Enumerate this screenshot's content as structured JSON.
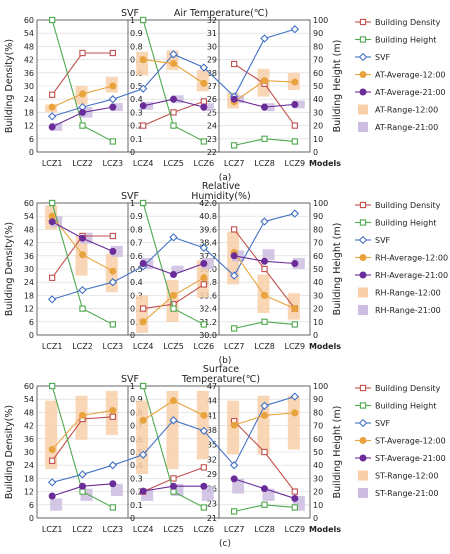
{
  "colors": {
    "density": "#C0504D",
    "height": "#4EA84E",
    "svf": "#4472C4",
    "avg12": "#E8A33C",
    "avg21": "#6A2C99",
    "range12": "#F8CFA8",
    "range21": "#CDBDE0",
    "grid": "#D9D9D9",
    "axis": "#000000"
  },
  "chart_data": [
    {
      "id": "a",
      "type": "line",
      "panel_label": "(a)",
      "title_lines": [
        "Air Temperature(℃)"
      ],
      "svf_title": "SVF",
      "ylabel_left": "Building Density(%)",
      "ylabel_right": "Building Height (m)",
      "x_last_label": "Models",
      "categories": [
        "LCZ1",
        "LCZ2",
        "LCZ3",
        "LCZ4",
        "LCZ5",
        "LCZ6",
        "LCZ7",
        "LCZ8",
        "LCZ9"
      ],
      "density_ticks": [
        "0",
        "6",
        "12",
        "18",
        "24",
        "30",
        "36",
        "42",
        "48",
        "54",
        "60"
      ],
      "svf_ticks": [
        "0",
        "0.1",
        "0.2",
        "0.3",
        "0.4",
        "0.5",
        "0.6",
        "0.7",
        "0.8",
        "0.9",
        "1"
      ],
      "var_ticks": [
        "22",
        "23",
        "24",
        "25",
        "26",
        "27",
        "28",
        "29",
        "30",
        "31",
        "32"
      ],
      "height_ticks": [
        "0",
        "10",
        "20",
        "30",
        "40",
        "50",
        "60",
        "70",
        "80",
        "90",
        "100"
      ],
      "ylim_density": [
        0,
        60
      ],
      "ylim_svf": [
        0,
        1
      ],
      "ylim_var": [
        22,
        32
      ],
      "ylim_height": [
        0,
        100
      ],
      "series": [
        {
          "name": "Building Density",
          "key": "density",
          "axis": "density",
          "marker": "square",
          "values": [
            26,
            45,
            45,
            12,
            18,
            23,
            40,
            31,
            12
          ]
        },
        {
          "name": "Building Height",
          "key": "height",
          "axis": "height",
          "marker": "square",
          "values": [
            100,
            20,
            8,
            100,
            20,
            8,
            5,
            10,
            8
          ]
        },
        {
          "name": "SVF",
          "key": "svf",
          "axis": "svf",
          "marker": "diamond",
          "values": [
            0.27,
            0.34,
            0.4,
            0.48,
            0.74,
            0.64,
            0.42,
            0.86,
            0.93
          ]
        },
        {
          "name": "AT-Average-12:00",
          "key": "avg12",
          "axis": "var",
          "marker": "circle",
          "values": [
            25.4,
            26.4,
            27.0,
            29.0,
            28.7,
            27.2,
            25.8,
            27.4,
            27.3
          ]
        },
        {
          "name": "AT-Average-21:00",
          "key": "avg21",
          "axis": "var",
          "marker": "circle",
          "values": [
            23.9,
            25.0,
            25.4,
            25.5,
            26.0,
            25.4,
            26.0,
            25.4,
            25.6
          ]
        }
      ],
      "ranges": [
        {
          "name": "AT-Range-12:00",
          "key": "range12",
          "low": [
            25.0,
            25.6,
            26.5,
            27.8,
            28.2,
            26.6,
            25.3,
            26.2,
            26.7
          ],
          "high": [
            25.6,
            27.0,
            27.7,
            29.6,
            29.7,
            28.2,
            26.5,
            28.3,
            28.0
          ]
        },
        {
          "name": "AT-Range-21:00",
          "key": "range21",
          "low": [
            23.6,
            24.6,
            25.1,
            25.2,
            25.7,
            25.1,
            25.7,
            25.1,
            25.3
          ],
          "high": [
            24.2,
            25.4,
            25.7,
            25.8,
            26.3,
            25.7,
            26.3,
            25.7,
            25.9
          ]
        }
      ]
    },
    {
      "id": "b",
      "type": "line",
      "panel_label": "(b)",
      "title_lines": [
        "Relative",
        "Humidity(%)"
      ],
      "svf_title": "SVF",
      "ylabel_left": "Building Density(%)",
      "ylabel_right": "Building Height (m)",
      "x_last_label": "Models",
      "categories": [
        "LCZ1",
        "LCZ2",
        "LCZ3",
        "LCZ4",
        "LCZ5",
        "LCZ6",
        "LCZ7",
        "LCZ8",
        "LCZ9"
      ],
      "density_ticks": [
        "0",
        "6",
        "12",
        "18",
        "24",
        "30",
        "36",
        "42",
        "48",
        "54",
        "60"
      ],
      "svf_ticks": [
        "0",
        "0.1",
        "0.2",
        "0.3",
        "0.4",
        "0.5",
        "0.6",
        "0.7",
        "0.8",
        "0.9",
        "1"
      ],
      "var_ticks": [
        "30.0",
        "31.2",
        "32.4",
        "33.6",
        "34.8",
        "36.0",
        "37.2",
        "38.4",
        "39.6",
        "40.8",
        "42.0"
      ],
      "height_ticks": [
        "0",
        "10",
        "20",
        "30",
        "40",
        "50",
        "60",
        "70",
        "80",
        "90",
        "100"
      ],
      "ylim_density": [
        0,
        60
      ],
      "ylim_svf": [
        0,
        1
      ],
      "ylim_var": [
        30,
        42
      ],
      "ylim_height": [
        0,
        100
      ],
      "series": [
        {
          "name": "Building Density",
          "key": "density",
          "axis": "density",
          "marker": "square",
          "values": [
            26,
            45,
            45,
            12,
            14,
            23,
            48,
            30,
            12
          ]
        },
        {
          "name": "Building Height",
          "key": "height",
          "axis": "height",
          "marker": "square",
          "values": [
            100,
            20,
            8,
            100,
            20,
            8,
            5,
            10,
            8
          ]
        },
        {
          "name": "SVF",
          "key": "svf",
          "axis": "svf",
          "marker": "diamond",
          "values": [
            0.27,
            0.34,
            0.4,
            0.52,
            0.74,
            0.66,
            0.45,
            0.86,
            0.92
          ]
        },
        {
          "name": "RH-Average-12:00",
          "key": "avg12",
          "axis": "var",
          "marker": "circle",
          "values": [
            40.8,
            37.3,
            35.8,
            31.2,
            33.6,
            35.2,
            37.5,
            33.6,
            32.4
          ]
        },
        {
          "name": "RH-Average-21:00",
          "key": "avg21",
          "axis": "var",
          "marker": "circle",
          "values": [
            40.3,
            38.8,
            37.6,
            36.5,
            35.5,
            36.5,
            37.2,
            36.7,
            36.5
          ]
        }
      ],
      "ranges": [
        {
          "name": "RH-Range-12:00",
          "key": "range12",
          "low": [
            39.6,
            35.4,
            33.9,
            30.2,
            31.2,
            33.4,
            34.6,
            32.0,
            31.4
          ],
          "high": [
            41.8,
            39.0,
            37.4,
            33.6,
            35.0,
            36.8,
            39.4,
            35.5,
            33.8
          ]
        },
        {
          "name": "RH-Range-21:00",
          "key": "range21",
          "low": [
            39.8,
            38.3,
            37.1,
            36.0,
            35.7,
            36.0,
            36.7,
            36.8,
            36.0
          ],
          "high": [
            40.8,
            39.3,
            38.1,
            37.0,
            36.3,
            37.0,
            37.7,
            37.8,
            37.0
          ]
        }
      ]
    },
    {
      "id": "c",
      "type": "line",
      "panel_label": "(c)",
      "title_lines": [
        "Surface",
        "Temperature(℃)"
      ],
      "svf_title": "SVF",
      "ylabel_left": "Building Density(%)",
      "ylabel_right": "Building Height (m)",
      "x_last_label": "Models",
      "categories": [
        "LCZ1",
        "LCZ2",
        "LCZ3",
        "LCZ4",
        "LCZ5",
        "LCZ6",
        "LCZ7",
        "LCZ8",
        "LCZ9"
      ],
      "density_ticks": [
        "0",
        "6",
        "12",
        "18",
        "24",
        "30",
        "36",
        "42",
        "48",
        "54",
        "60"
      ],
      "svf_ticks": [
        "0",
        "0.1",
        "0.2",
        "0.3",
        "0.4",
        "0.5",
        "0.6",
        "0.7",
        "0.8",
        "0.9",
        "1"
      ],
      "var_ticks": [
        "21",
        "23",
        "26",
        "29",
        "32",
        "35",
        "38",
        "41",
        "44",
        "47"
      ],
      "height_ticks": [
        "0",
        "10",
        "20",
        "30",
        "40",
        "50",
        "60",
        "70",
        "80",
        "90",
        "100"
      ],
      "ylim_density": [
        0,
        60
      ],
      "ylim_svf": [
        0,
        1
      ],
      "ylim_var": [
        20,
        47
      ],
      "ylim_height": [
        0,
        100
      ],
      "series": [
        {
          "name": "Building Density",
          "key": "density",
          "axis": "density",
          "marker": "square",
          "values": [
            26,
            45,
            46,
            12,
            18,
            23,
            44,
            30,
            12
          ]
        },
        {
          "name": "Building Height",
          "key": "height",
          "axis": "height",
          "marker": "square",
          "values": [
            100,
            20,
            8,
            100,
            20,
            8,
            5,
            10,
            8
          ]
        },
        {
          "name": "SVF",
          "key": "svf",
          "axis": "svf",
          "marker": "diamond",
          "values": [
            0.27,
            0.33,
            0.4,
            0.48,
            0.74,
            0.66,
            0.4,
            0.85,
            0.92
          ]
        },
        {
          "name": "ST-Average-12:00",
          "key": "avg12",
          "axis": "var",
          "marker": "circle",
          "values": [
            34,
            41,
            42,
            40,
            44,
            41,
            39,
            41,
            41.5
          ]
        },
        {
          "name": "ST-Average-21:00",
          "key": "avg21",
          "axis": "var",
          "marker": "circle",
          "values": [
            24.5,
            26.5,
            27,
            25.5,
            26.5,
            26.5,
            28,
            26,
            24
          ]
        }
      ],
      "ranges": [
        {
          "name": "ST-Range-12:00",
          "key": "range12",
          "low": [
            30,
            36,
            37,
            29,
            30,
            32,
            33,
            33,
            34
          ],
          "high": [
            44,
            45,
            46,
            44,
            46,
            46,
            44,
            45,
            45
          ]
        },
        {
          "name": "ST-Range-21:00",
          "key": "range21",
          "low": [
            21.5,
            23.5,
            24.5,
            23.5,
            24.5,
            23.5,
            25,
            23.5,
            21.5
          ],
          "high": [
            24,
            26,
            27,
            26,
            27,
            26.5,
            28,
            26,
            24.5
          ]
        }
      ]
    }
  ]
}
